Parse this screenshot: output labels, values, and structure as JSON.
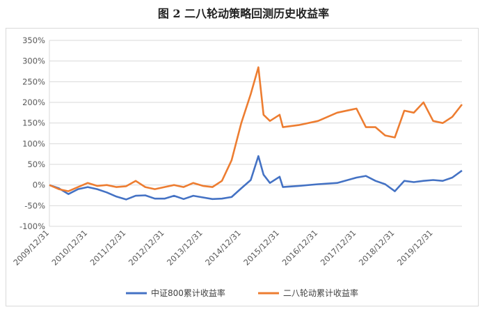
{
  "chart_data": {
    "type": "line",
    "title": "图 2  二八轮动策略回测历史收益率",
    "y_ticks": [
      "350%",
      "300%",
      "250%",
      "200%",
      "150%",
      "100%",
      "50%",
      "0%",
      "-50%",
      "-100%"
    ],
    "ylim": [
      -100,
      350
    ],
    "x_ticks": [
      "2009/12/31",
      "2010/12/31",
      "2011/12/31",
      "2012/12/31",
      "2013/12/31",
      "2014/12/31",
      "2015/12/31",
      "2016/12/31",
      "2017/12/31",
      "2018/12/31",
      "2019/12/31"
    ],
    "x_range": [
      "2009/12/31",
      "2020/09/30"
    ],
    "grid": true,
    "legend_position": "bottom",
    "series": [
      {
        "name": "中证800累计收益率",
        "color": "#4472C4",
        "x": [
          "2009/12/31",
          "2010/03/31",
          "2010/06/30",
          "2010/09/30",
          "2010/12/31",
          "2011/03/31",
          "2011/06/30",
          "2011/09/30",
          "2011/12/31",
          "2012/03/31",
          "2012/06/30",
          "2012/09/30",
          "2012/12/31",
          "2013/03/31",
          "2013/06/30",
          "2013/09/30",
          "2013/12/31",
          "2014/03/31",
          "2014/06/30",
          "2014/09/30",
          "2014/12/31",
          "2015/03/31",
          "2015/06/12",
          "2015/07/31",
          "2015/09/30",
          "2015/12/31",
          "2016/01/31",
          "2016/06/30",
          "2016/12/31",
          "2017/06/30",
          "2017/12/31",
          "2018/03/31",
          "2018/06/30",
          "2018/09/30",
          "2018/12/31",
          "2019/03/31",
          "2019/06/30",
          "2019/09/30",
          "2019/12/31",
          "2020/03/31",
          "2020/06/30",
          "2020/09/30"
        ],
        "y": [
          0,
          -8,
          -22,
          -10,
          -5,
          -10,
          -18,
          -28,
          -35,
          -26,
          -25,
          -33,
          -33,
          -26,
          -34,
          -26,
          -30,
          -34,
          -33,
          -29,
          -8,
          12,
          70,
          25,
          5,
          20,
          -5,
          -2,
          2,
          5,
          18,
          22,
          10,
          2,
          -15,
          10,
          7,
          10,
          12,
          10,
          18,
          35
        ]
      },
      {
        "name": "二八轮动累计收益率",
        "color": "#ED7D31",
        "x": [
          "2009/12/31",
          "2010/03/31",
          "2010/06/30",
          "2010/09/30",
          "2010/12/31",
          "2011/03/31",
          "2011/06/30",
          "2011/09/30",
          "2011/12/31",
          "2012/03/31",
          "2012/06/30",
          "2012/09/30",
          "2012/12/31",
          "2013/03/31",
          "2013/06/30",
          "2013/09/30",
          "2013/12/31",
          "2014/03/31",
          "2014/06/30",
          "2014/09/30",
          "2014/12/31",
          "2015/03/31",
          "2015/06/12",
          "2015/07/31",
          "2015/09/30",
          "2015/12/31",
          "2016/01/31",
          "2016/06/30",
          "2016/12/31",
          "2017/06/30",
          "2017/12/31",
          "2018/03/31",
          "2018/06/30",
          "2018/09/30",
          "2018/12/31",
          "2019/03/31",
          "2019/06/30",
          "2019/09/30",
          "2019/12/31",
          "2020/03/31",
          "2020/06/30",
          "2020/09/30"
        ],
        "y": [
          0,
          -10,
          -15,
          -5,
          5,
          -2,
          0,
          -5,
          -3,
          10,
          -5,
          -10,
          -5,
          0,
          -5,
          5,
          -2,
          -5,
          10,
          60,
          150,
          220,
          285,
          170,
          155,
          170,
          140,
          145,
          155,
          175,
          185,
          140,
          140,
          120,
          115,
          180,
          175,
          200,
          155,
          150,
          165,
          195
        ]
      }
    ]
  }
}
